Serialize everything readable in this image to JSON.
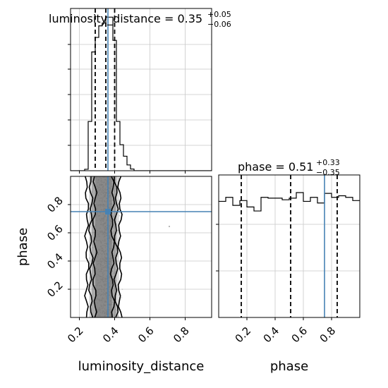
{
  "colors": {
    "truth": "#4682b4",
    "hist": "#000000",
    "grid": "#c8c8c8",
    "scatter": "#b0b0b0"
  },
  "chart_data": [
    {
      "type": "histogram",
      "panel": "luminosity_distance-marginal",
      "title": {
        "param": "luminosity_distance",
        "median": "0.35",
        "plus": "+0.05",
        "minus": "−0.06"
      },
      "xlim": [
        0.15,
        0.95
      ],
      "x_ticks": [
        0.2,
        0.4,
        0.6,
        0.8
      ],
      "bin_edges": [
        0.15,
        0.17,
        0.19,
        0.21,
        0.23,
        0.25,
        0.27,
        0.29,
        0.31,
        0.33,
        0.35,
        0.37,
        0.39,
        0.41,
        0.43,
        0.45,
        0.47,
        0.49,
        0.51,
        0.53,
        0.55,
        0.57,
        0.59,
        0.61,
        0.63,
        0.65,
        0.67,
        0.69,
        0.71,
        0.73,
        0.75,
        0.77,
        0.79,
        0.81,
        0.83,
        0.85,
        0.87,
        0.89,
        0.91,
        0.93,
        0.95
      ],
      "counts": [
        0,
        0,
        0,
        0,
        0.5,
        17,
        41,
        46,
        50,
        51,
        53,
        53,
        45,
        17,
        9,
        5,
        2,
        0.6,
        0,
        0,
        0,
        0,
        0,
        0,
        0,
        0,
        0,
        0,
        0,
        0,
        0,
        0,
        0,
        0,
        0,
        0,
        0,
        0,
        0,
        0
      ],
      "ylim": [
        0,
        56
      ],
      "quantiles": [
        0.29,
        0.35,
        0.4
      ],
      "truth": 0.362
    },
    {
      "type": "histogram",
      "panel": "phase-marginal",
      "title": {
        "param": "phase",
        "median": "0.51",
        "plus": "+0.33",
        "minus": "−0.35"
      },
      "xlim": [
        0.0,
        1.0
      ],
      "x_ticks": [
        0.2,
        0.4,
        0.6,
        0.8
      ],
      "bin_edges": [
        0.0,
        0.05,
        0.1,
        0.15,
        0.2,
        0.25,
        0.3,
        0.35,
        0.4,
        0.45,
        0.5,
        0.55,
        0.6,
        0.65,
        0.7,
        0.75,
        0.8,
        0.85,
        0.9,
        0.95,
        1.0
      ],
      "counts": [
        145,
        150,
        140,
        146,
        138,
        133,
        150,
        149,
        149,
        147,
        149,
        156,
        145,
        150,
        143,
        155,
        150,
        152,
        150,
        146
      ],
      "ylim": [
        0,
        178
      ],
      "quantiles": [
        0.16,
        0.51,
        0.84
      ],
      "truth": 0.75
    },
    {
      "type": "scatter",
      "panel": "joint-posterior",
      "xlabel": "luminosity_distance",
      "ylabel": "phase",
      "xlim": [
        0.15,
        0.95
      ],
      "ylim": [
        0.0,
        1.0
      ],
      "x_ticks": [
        0.2,
        0.4,
        0.6,
        0.8
      ],
      "y_ticks": [
        0.2,
        0.4,
        0.6,
        0.8
      ],
      "truth": [
        0.362,
        0.75
      ],
      "density_band": [
        0.25,
        0.45
      ],
      "outliers": [
        [
          0.71,
          0.645
        ]
      ],
      "contours": [
        {
          "level": "inner",
          "left": 0.287,
          "right": 0.388
        },
        {
          "level": "middle",
          "left": 0.265,
          "right": 0.408
        },
        {
          "level": "outer",
          "left": 0.243,
          "right": 0.43
        }
      ]
    }
  ]
}
